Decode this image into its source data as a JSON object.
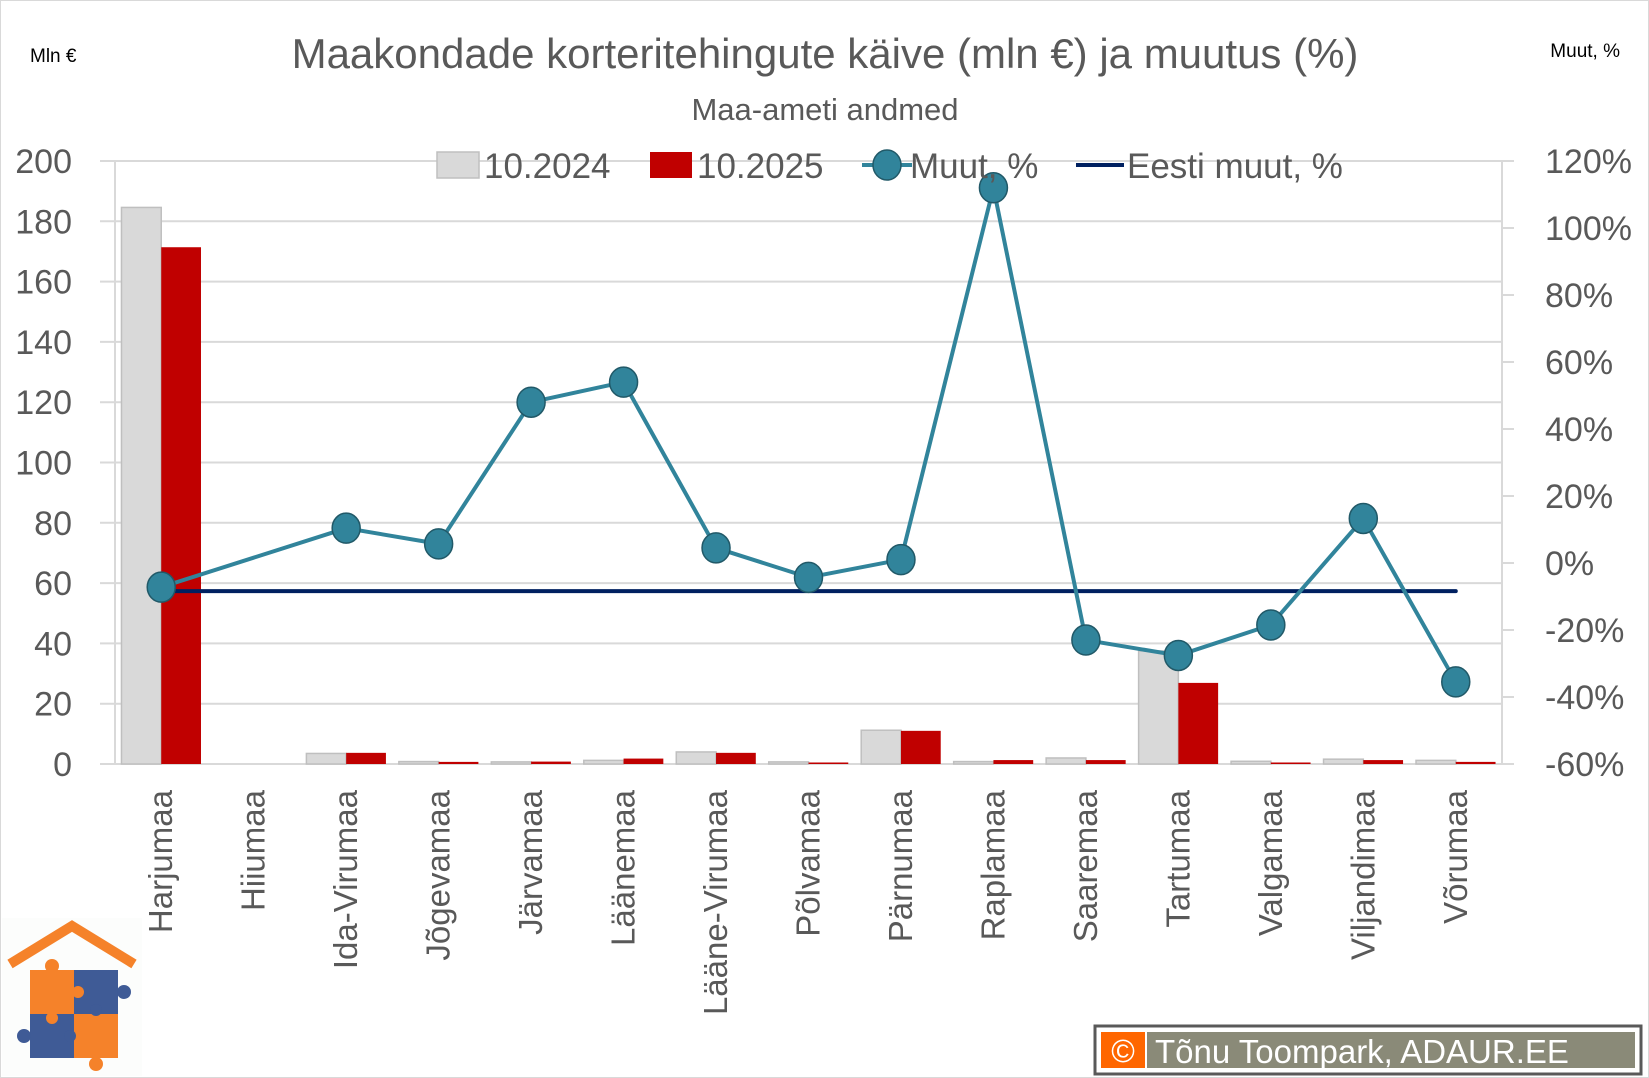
{
  "chart_data": {
    "type": "bar",
    "title": "Maakondade korteritehingute käive (mln €) ja muutus (%)",
    "subtitle": "Maa-ameti andmed",
    "ylabel": "Mln €",
    "y2label": "Muut, %",
    "ylim": [
      0,
      200
    ],
    "y2lim": [
      -60,
      120
    ],
    "yticks": [
      "0",
      "20",
      "40",
      "60",
      "80",
      "100",
      "120",
      "140",
      "160",
      "180",
      "200"
    ],
    "y2ticks": [
      "-60%",
      "-40%",
      "-20%",
      "0%",
      "20%",
      "40%",
      "60%",
      "80%",
      "100%",
      "120%"
    ],
    "grid": true,
    "legend_placement": "top",
    "categories": [
      "Harjumaa",
      "Hiiumaa",
      "Ida-Virumaa",
      "Jõgevamaa",
      "Järvamaa",
      "Läänemaa",
      "Lääne-Virumaa",
      "Põlvamaa",
      "Pärnumaa",
      "Raplamaa",
      "Saaremaa",
      "Tartumaa",
      "Valgamaa",
      "Viljandimaa",
      "Võrumaa"
    ],
    "series": [
      {
        "name": "10.2024",
        "type": "bar",
        "axis": "left",
        "color": "#d9d9d9",
        "values": [
          184.6,
          0,
          3.5,
          0.8,
          0.7,
          1.2,
          4.0,
          0.7,
          11.2,
          0.8,
          2.0,
          37.5,
          0.9,
          1.6,
          1.2
        ]
      },
      {
        "name": "10.2025",
        "type": "bar",
        "axis": "left",
        "color": "#c00000",
        "values": [
          171.4,
          0,
          3.7,
          0.7,
          0.8,
          1.8,
          3.7,
          0.5,
          11.0,
          1.3,
          1.3,
          26.9,
          0.5,
          1.3,
          0.7
        ]
      },
      {
        "name": "Muut, %",
        "type": "line",
        "axis": "right",
        "color": "#31849b",
        "values": [
          -7.2,
          null,
          10.4,
          5.7,
          48,
          54,
          4.5,
          -4.3,
          1,
          112,
          -23,
          -27.6,
          -18.5,
          13.3,
          -35.5
        ]
      },
      {
        "name": "Eesti muut, %",
        "type": "line",
        "axis": "right",
        "color": "#002060",
        "values": [
          -8.4,
          -8.4,
          -8.4,
          -8.4,
          -8.4,
          -8.4,
          -8.4,
          -8.4,
          -8.4,
          -8.4,
          -8.4,
          -8.4,
          -8.4,
          -8.4,
          -8.4
        ]
      }
    ]
  },
  "watermark": {
    "symbol": "©",
    "text": "Tõnu Toompark, ADAUR.EE"
  },
  "logo": {
    "icon": "house-puzzle-logo",
    "colors": [
      "#f5822a",
      "#3f5b96"
    ]
  }
}
